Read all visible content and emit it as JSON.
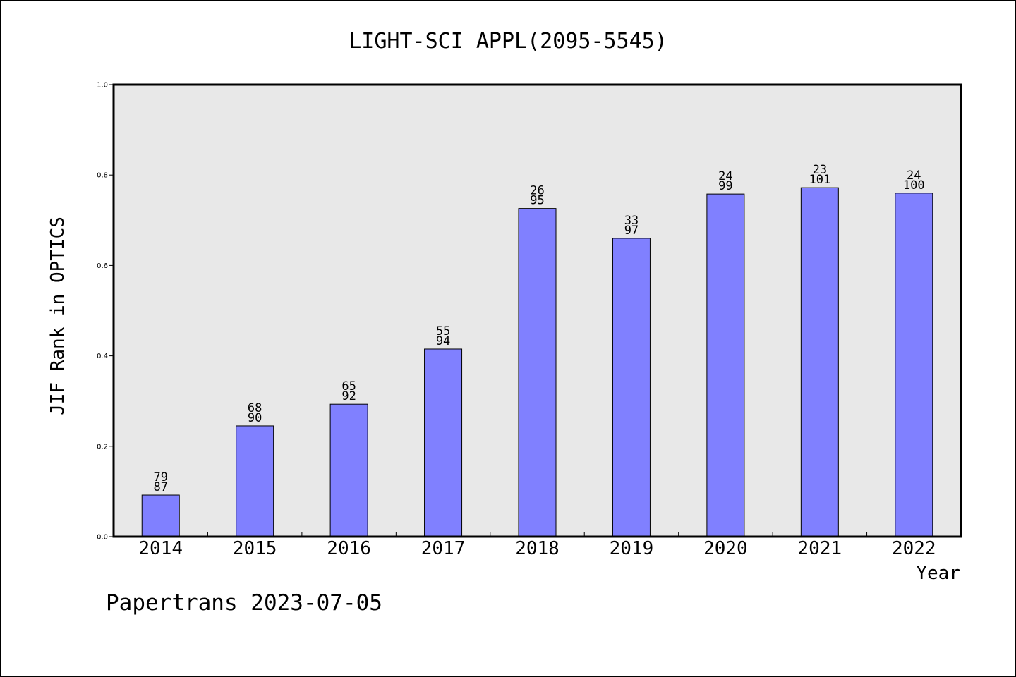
{
  "chart_data": {
    "type": "bar",
    "title": "LIGHT-SCI APPL(2095-5545)",
    "xlabel": "Year",
    "ylabel": "JIF Rank in OPTICS",
    "ylim": [
      0,
      1.0
    ],
    "yticks": [
      "0.0",
      "0.2",
      "0.4",
      "0.6",
      "0.8",
      "1.0"
    ],
    "categories": [
      "2014",
      "2015",
      "2016",
      "2017",
      "2018",
      "2019",
      "2020",
      "2021",
      "2022"
    ],
    "values": [
      0.092,
      0.245,
      0.293,
      0.415,
      0.726,
      0.66,
      0.758,
      0.772,
      0.76
    ],
    "annotations": [
      {
        "rank": "79",
        "total": "87"
      },
      {
        "rank": "68",
        "total": "90"
      },
      {
        "rank": "65",
        "total": "92"
      },
      {
        "rank": "55",
        "total": "94"
      },
      {
        "rank": "26",
        "total": "95"
      },
      {
        "rank": "33",
        "total": "97"
      },
      {
        "rank": "24",
        "total": "99"
      },
      {
        "rank": "23",
        "total": "101"
      },
      {
        "rank": "24",
        "total": "100"
      }
    ],
    "bar_color": "#8080ff",
    "plot_background": "#e8e8e8",
    "grid": false
  },
  "footer": "Papertrans 2023-07-05"
}
